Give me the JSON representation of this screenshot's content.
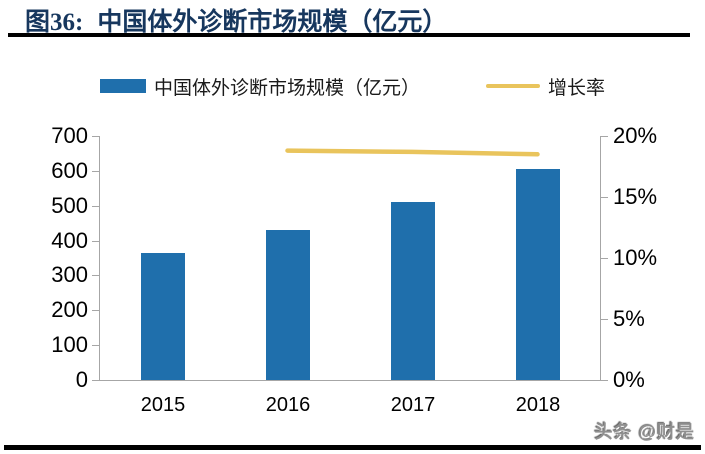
{
  "figure": {
    "label": "图36:",
    "title": "中国体外诊断市场规模（亿元）"
  },
  "legend": {
    "bar_label": "中国体外诊断市场规模（亿元）",
    "line_label": "增长率"
  },
  "watermark": "头条 @财是",
  "colors": {
    "bar": "#1F6FAC",
    "line": "#E9C45C",
    "title": "#17375E",
    "axis": "#A6A6A6",
    "tick_label": "#000000",
    "watermark": "#8F8F8F",
    "rule": "#000000"
  },
  "chart_data": {
    "type": "bar",
    "title": "中国体外诊断市场规模（亿元）",
    "categories": [
      "2015",
      "2016",
      "2017",
      "2018"
    ],
    "series": [
      {
        "name": "中国体外诊断市场规模（亿元）",
        "type": "bar",
        "axis": "left",
        "values": [
          365,
          430,
          510,
          605
        ]
      },
      {
        "name": "增长率",
        "type": "line",
        "axis": "right",
        "values": [
          null,
          18.8,
          18.7,
          18.5
        ]
      }
    ],
    "left_axis": {
      "min": 0,
      "max": 700,
      "step": 100,
      "tick_labels": [
        "0",
        "100",
        "200",
        "300",
        "400",
        "500",
        "600",
        "700"
      ]
    },
    "right_axis": {
      "min": 0,
      "max": 20,
      "step": 5,
      "tick_labels": [
        "0%",
        "5%",
        "10%",
        "15%",
        "20%"
      ]
    },
    "grid": false,
    "legend_position": "top",
    "xlabel": "",
    "ylabel": ""
  }
}
